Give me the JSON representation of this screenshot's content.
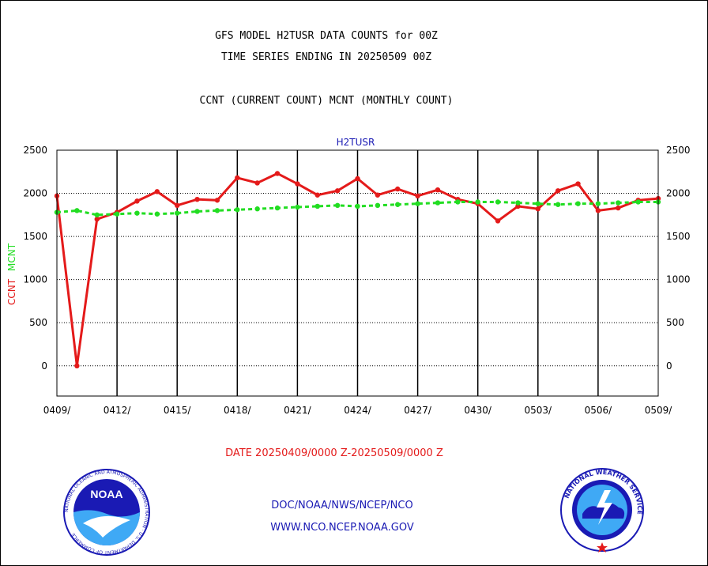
{
  "header": {
    "line1": "GFS MODEL H2TUSR DATA COUNTS for 00Z",
    "line2": "TIME SERIES ENDING IN 20250509 00Z",
    "line3": "CCNT (CURRENT COUNT) MCNT (MONTHLY COUNT)"
  },
  "footer": {
    "date_range": "DATE 20250409/0000 Z-20250509/0000 Z",
    "org": "DOC/NOAA/NWS/NCEP/NCO",
    "url": "WWW.NCO.NCEP.NOAA.GOV",
    "noaa_logo_text": "NOAA",
    "noaa_ring_text": "NATIONAL OCEANIC AND ATMOSPHERIC ADMINISTRATION · U.S. DEPARTMENT OF COMMERCE",
    "nws_ring_text": "NATIONAL WEATHER SERVICE"
  },
  "chart_data": {
    "type": "line",
    "title": "H2TUSR",
    "ylabel_current": "CCNT",
    "ylabel_monthly": "MCNT",
    "ylim": [
      -350,
      2500
    ],
    "yticks": [
      0,
      500,
      1000,
      1500,
      2000,
      2500
    ],
    "xticks": [
      "0409/",
      "0412/",
      "0415/",
      "0418/",
      "0421/",
      "0424/",
      "0427/",
      "0430/",
      "0503/",
      "0506/",
      "0509/"
    ],
    "x": [
      "0409",
      "0410",
      "0411",
      "0412",
      "0413",
      "0414",
      "0415",
      "0416",
      "0417",
      "0418",
      "0419",
      "0420",
      "0421",
      "0422",
      "0423",
      "0424",
      "0425",
      "0426",
      "0427",
      "0428",
      "0429",
      "0430",
      "0501",
      "0502",
      "0503",
      "0504",
      "0505",
      "0506",
      "0507",
      "0508",
      "0509"
    ],
    "grid": true,
    "series": [
      {
        "name": "CCNT",
        "color": "#e41a1a",
        "values": [
          1970,
          0,
          1700,
          1780,
          1910,
          2020,
          1860,
          1930,
          1920,
          2180,
          2120,
          2230,
          2110,
          1980,
          2030,
          2170,
          1980,
          2050,
          1970,
          2040,
          1930,
          1880,
          1680,
          1850,
          1820,
          2030,
          2110,
          1800,
          1830,
          1920,
          1940
        ]
      },
      {
        "name": "MCNT",
        "color": "#22dd22",
        "values": [
          1780,
          1800,
          1750,
          1760,
          1770,
          1760,
          1770,
          1790,
          1800,
          1810,
          1820,
          1830,
          1840,
          1850,
          1860,
          1850,
          1860,
          1870,
          1880,
          1890,
          1900,
          1900,
          1900,
          1890,
          1880,
          1870,
          1880,
          1880,
          1890,
          1900,
          1900
        ]
      }
    ]
  }
}
